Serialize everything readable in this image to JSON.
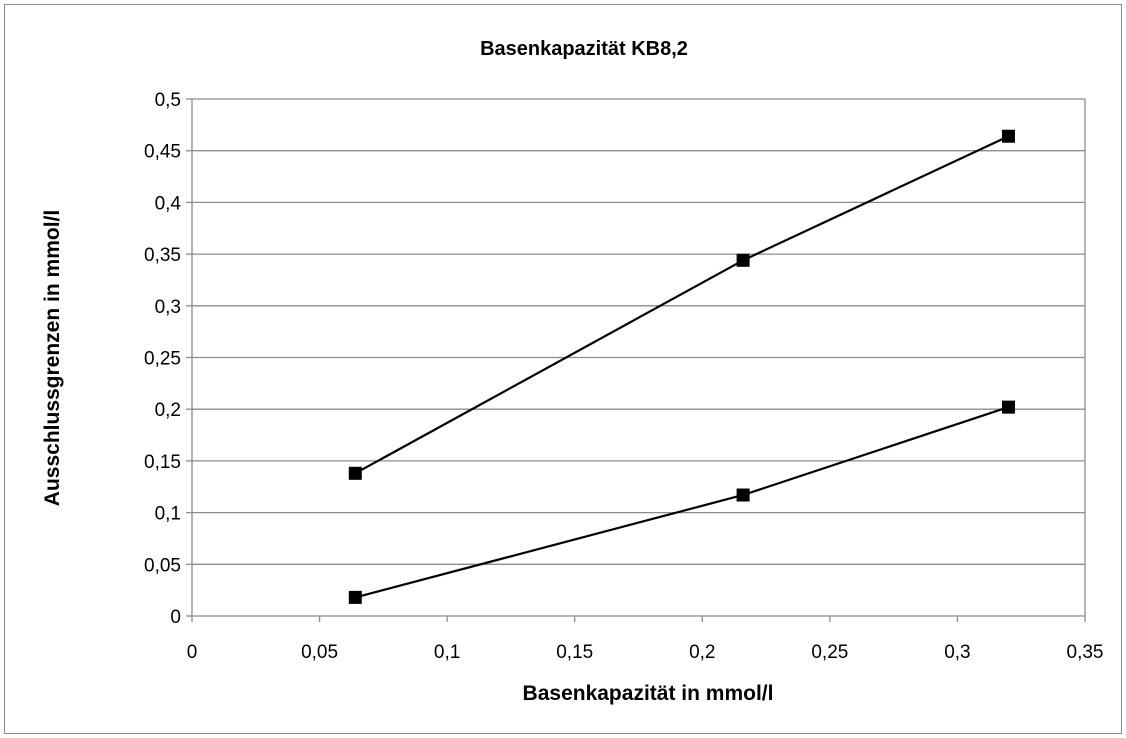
{
  "chart_data": {
    "type": "line",
    "title": "Basenkapazität KB8,2",
    "xlabel": "Basenkapazität in mmol/l",
    "ylabel": "Ausschlussgrenzen in mmol/l",
    "xlim": [
      0,
      0.35
    ],
    "ylim": [
      0,
      0.5
    ],
    "x_ticks": [
      "0",
      "0,05",
      "0,1",
      "0,15",
      "0,2",
      "0,25",
      "0,3",
      "0,35"
    ],
    "y_ticks": [
      "0",
      "0,05",
      "0,1",
      "0,15",
      "0,2",
      "0,25",
      "0,3",
      "0,35",
      "0,4",
      "0,45",
      "0,5"
    ],
    "x_tick_values": [
      0,
      0.05,
      0.1,
      0.15,
      0.2,
      0.25,
      0.3,
      0.35
    ],
    "y_tick_values": [
      0,
      0.05,
      0.1,
      0.15,
      0.2,
      0.25,
      0.3,
      0.35,
      0.4,
      0.45,
      0.5
    ],
    "grid": "horizontal",
    "legend": "none",
    "marker": "square",
    "line_color": "#000000",
    "grid_color": "#8c8c8c",
    "series": [
      {
        "x": [
          0.064,
          0.216,
          0.32
        ],
        "y": [
          0.138,
          0.344,
          0.464
        ]
      },
      {
        "x": [
          0.064,
          0.216,
          0.32
        ],
        "y": [
          0.018,
          0.117,
          0.202
        ]
      }
    ]
  }
}
